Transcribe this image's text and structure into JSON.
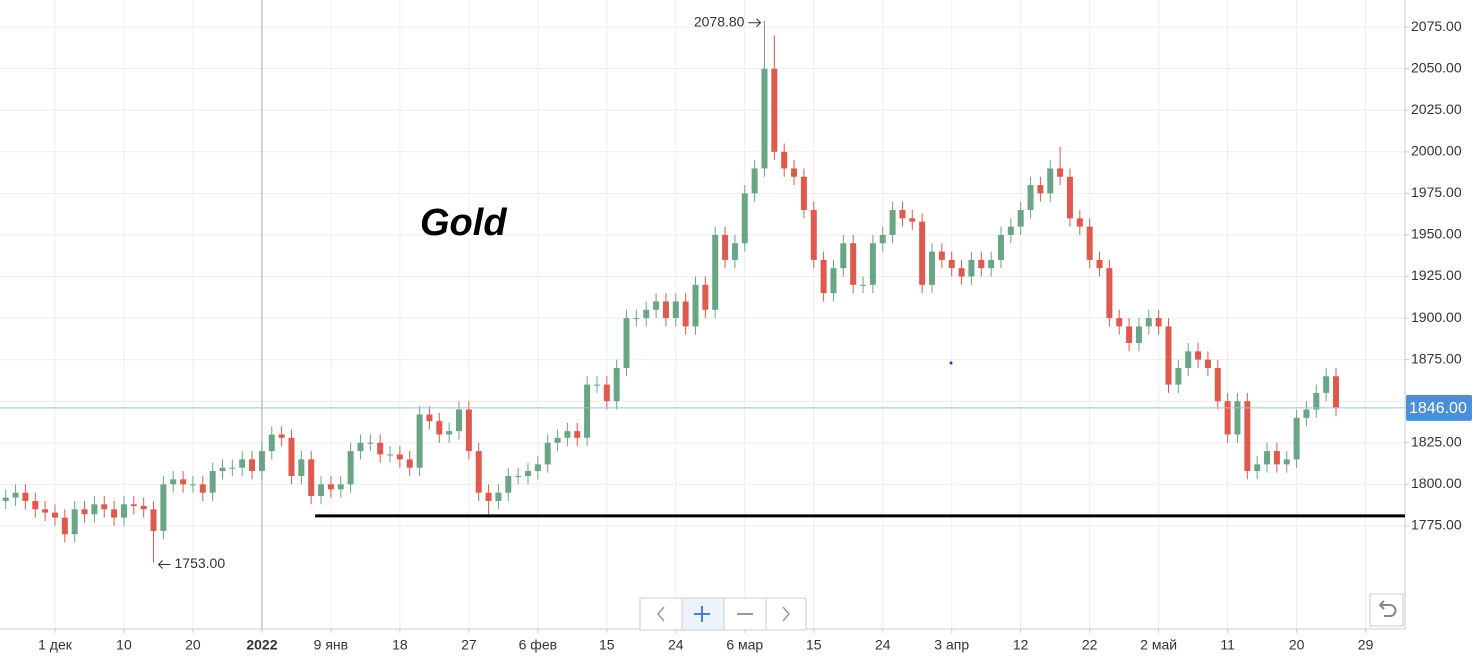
{
  "chart_data": {
    "type": "candlestick",
    "title": "Gold",
    "up_color": "#6aa586",
    "down_color": "#e0594d",
    "xlim": [
      -0.58,
      142
    ],
    "ylim": [
      1713,
      2091.3
    ],
    "grid": true,
    "xticks": [
      {
        "value": 5,
        "label": "1 дек"
      },
      {
        "value": 12,
        "label": "10"
      },
      {
        "value": 19,
        "label": "20"
      },
      {
        "value": 26,
        "label": "2022"
      },
      {
        "value": 33,
        "label": "9 янв"
      },
      {
        "value": 40,
        "label": "18"
      },
      {
        "value": 47,
        "label": "27"
      },
      {
        "value": 54,
        "label": "6 фев"
      },
      {
        "value": 61,
        "label": "15"
      },
      {
        "value": 68,
        "label": "24"
      },
      {
        "value": 75,
        "label": "6 мар"
      },
      {
        "value": 82,
        "label": "15"
      },
      {
        "value": 89,
        "label": "24"
      },
      {
        "value": 96,
        "label": "3 апр"
      },
      {
        "value": 103,
        "label": "12"
      },
      {
        "value": 110,
        "label": "22"
      },
      {
        "value": 117,
        "label": "2 май"
      },
      {
        "value": 124,
        "label": "11"
      },
      {
        "value": 131,
        "label": "20"
      },
      {
        "value": 138,
        "label": "29"
      }
    ],
    "yticks": [
      {
        "value": 1775,
        "label": "1775.00"
      },
      {
        "value": 1800,
        "label": "1800.00"
      },
      {
        "value": 1825,
        "label": "1825.00"
      },
      {
        "value": 1850,
        "label": "1850.00"
      },
      {
        "value": 1875,
        "label": "1875.00"
      },
      {
        "value": 1900,
        "label": "1900.00"
      },
      {
        "value": 1925,
        "label": "1925.00"
      },
      {
        "value": 1950,
        "label": "1950.00"
      },
      {
        "value": 1975,
        "label": "1975.00"
      },
      {
        "value": 2000,
        "label": "2000.00"
      },
      {
        "value": 2025,
        "label": "2025.00"
      },
      {
        "value": 2050,
        "label": "2050.00"
      },
      {
        "value": 2075,
        "label": "2075.00"
      }
    ],
    "open": [
      1790,
      1792,
      1795,
      1790,
      1785,
      1783,
      1780,
      1770,
      1785,
      1782,
      1788,
      1785,
      1780,
      1788,
      1787,
      1785,
      1772,
      1800,
      1803,
      1800,
      1800,
      1795,
      1808,
      1810,
      1810,
      1815,
      1808,
      1820,
      1830,
      1828,
      1805,
      1815,
      1793,
      1800,
      1797,
      1800,
      1820,
      1825,
      1825,
      1818,
      1818,
      1815,
      1810,
      1842,
      1838,
      1830,
      1832,
      1845,
      1820,
      1795,
      1790,
      1795,
      1805,
      1805,
      1808,
      1812,
      1825,
      1828,
      1832,
      1828,
      1860,
      1860,
      1850,
      1870,
      1900,
      1900,
      1905,
      1910,
      1900,
      1910,
      1895,
      1920,
      1905,
      1950,
      1935,
      1945,
      1975,
      1990,
      2050,
      2000,
      1990,
      1985,
      1965,
      1935,
      1915,
      1930,
      1945,
      1920,
      1920,
      1945,
      1950,
      1965,
      1960,
      1958,
      1920,
      1940,
      1935,
      1930,
      1925,
      1935,
      1930,
      1935,
      1950,
      1955,
      1965,
      1980,
      1975,
      1990,
      1985,
      1960,
      1955,
      1935,
      1930,
      1900,
      1895,
      1885,
      1895,
      1900,
      1895,
      1860,
      1870,
      1880,
      1875,
      1870,
      1850,
      1830,
      1850,
      1808,
      1812,
      1820,
      1812,
      1815,
      1840,
      1845,
      1855,
      1865
    ],
    "high": [
      1797,
      1800,
      1800,
      1795,
      1790,
      1788,
      1785,
      1790,
      1790,
      1793,
      1793,
      1790,
      1793,
      1793,
      1792,
      1790,
      1805,
      1808,
      1808,
      1805,
      1805,
      1813,
      1815,
      1815,
      1820,
      1820,
      1825,
      1835,
      1835,
      1833,
      1820,
      1820,
      1805,
      1805,
      1805,
      1825,
      1830,
      1830,
      1830,
      1823,
      1823,
      1820,
      1847,
      1847,
      1843,
      1837,
      1850,
      1850,
      1825,
      1800,
      1800,
      1810,
      1810,
      1813,
      1817,
      1830,
      1833,
      1837,
      1837,
      1865,
      1865,
      1865,
      1875,
      1905,
      1905,
      1910,
      1915,
      1915,
      1915,
      1915,
      1925,
      1925,
      1955,
      1955,
      1950,
      1980,
      1995,
      2078.8,
      2070,
      2005,
      1995,
      1990,
      1970,
      1940,
      1935,
      1950,
      1950,
      1925,
      1950,
      1955,
      1970,
      1970,
      1965,
      1963,
      1945,
      1945,
      1940,
      1935,
      1940,
      1940,
      1940,
      1955,
      1960,
      1970,
      1985,
      1985,
      1995,
      2003,
      1990,
      1965,
      1960,
      1940,
      1935,
      1905,
      1900,
      1900,
      1905,
      1905,
      1900,
      1875,
      1885,
      1885,
      1880,
      1875,
      1855,
      1855,
      1855,
      1817,
      1825,
      1825,
      1820,
      1845,
      1850,
      1860,
      1870,
      1870
    ],
    "low": [
      1785,
      1787,
      1785,
      1780,
      1778,
      1775,
      1765,
      1765,
      1777,
      1777,
      1780,
      1775,
      1775,
      1782,
      1780,
      1753,
      1767,
      1795,
      1795,
      1795,
      1790,
      1790,
      1803,
      1805,
      1805,
      1803,
      1803,
      1815,
      1823,
      1800,
      1800,
      1788,
      1788,
      1792,
      1792,
      1795,
      1815,
      1820,
      1813,
      1813,
      1810,
      1805,
      1805,
      1833,
      1825,
      1825,
      1827,
      1815,
      1790,
      1780,
      1785,
      1790,
      1800,
      1800,
      1803,
      1807,
      1820,
      1823,
      1823,
      1823,
      1855,
      1845,
      1845,
      1865,
      1895,
      1895,
      1900,
      1895,
      1895,
      1890,
      1890,
      1900,
      1900,
      1930,
      1930,
      1940,
      1970,
      1985,
      1995,
      1985,
      1980,
      1960,
      1930,
      1910,
      1910,
      1925,
      1915,
      1915,
      1915,
      1940,
      1945,
      1955,
      1953,
      1915,
      1915,
      1930,
      1925,
      1920,
      1920,
      1925,
      1925,
      1930,
      1945,
      1950,
      1960,
      1970,
      1970,
      1980,
      1955,
      1950,
      1930,
      1925,
      1895,
      1890,
      1880,
      1880,
      1890,
      1890,
      1855,
      1855,
      1865,
      1870,
      1865,
      1845,
      1825,
      1825,
      1803,
      1803,
      1807,
      1807,
      1807,
      1810,
      1835,
      1840,
      1850,
      1841
    ],
    "close": [
      1792,
      1795,
      1790,
      1785,
      1783,
      1780,
      1770,
      1785,
      1782,
      1788,
      1785,
      1780,
      1788,
      1787,
      1785,
      1772,
      1800,
      1803,
      1800,
      1800,
      1795,
      1808,
      1810,
      1810,
      1815,
      1808,
      1820,
      1830,
      1828,
      1805,
      1815,
      1793,
      1800,
      1797,
      1800,
      1820,
      1825,
      1825,
      1818,
      1818,
      1815,
      1810,
      1842,
      1838,
      1830,
      1832,
      1845,
      1820,
      1795,
      1790,
      1795,
      1805,
      1805,
      1808,
      1812,
      1825,
      1828,
      1832,
      1828,
      1860,
      1860,
      1850,
      1870,
      1900,
      1900,
      1905,
      1910,
      1900,
      1910,
      1895,
      1920,
      1905,
      1950,
      1935,
      1945,
      1975,
      1990,
      2050,
      2000,
      1990,
      1985,
      1965,
      1935,
      1915,
      1930,
      1945,
      1920,
      1920,
      1945,
      1950,
      1965,
      1960,
      1958,
      1920,
      1940,
      1935,
      1930,
      1925,
      1935,
      1930,
      1935,
      1950,
      1955,
      1965,
      1980,
      1975,
      1990,
      1985,
      1960,
      1955,
      1935,
      1930,
      1900,
      1895,
      1885,
      1895,
      1900,
      1895,
      1860,
      1870,
      1880,
      1875,
      1870,
      1850,
      1830,
      1850,
      1808,
      1812,
      1820,
      1812,
      1815,
      1840,
      1845,
      1855,
      1865,
      1846
    ],
    "max_label": "2078.80",
    "min_label": "1753.00",
    "last_price": {
      "value": 1846,
      "label": "1846.00"
    },
    "support_line": {
      "value": 1781,
      "from": 31.4
    }
  }
}
